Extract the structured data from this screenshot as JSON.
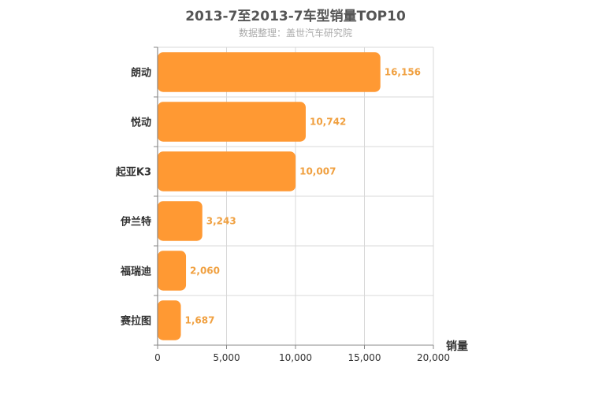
{
  "chart_data": {
    "type": "bar",
    "orientation": "horizontal",
    "title": "2013-7至2013-7车型销量TOP10",
    "subtitle": "数据整理：盖世汽车研究院",
    "categories": [
      "朗动",
      "悦动",
      "起亚K3",
      "伊兰特",
      "福瑞迪",
      "赛拉图"
    ],
    "values": [
      16156,
      10742,
      10007,
      3243,
      2060,
      1687
    ],
    "data_labels": [
      "16,156",
      "10,742",
      "10,007",
      "3,243",
      "2,060",
      "1,687"
    ],
    "xlabel": "销量",
    "xlim": [
      0,
      20000
    ],
    "ticks": [
      0,
      5000,
      10000,
      15000,
      20000
    ],
    "tick_labels": [
      "0",
      "5,000",
      "10,000",
      "15,000",
      "20,000"
    ],
    "grid": true,
    "bar_color": "#ff9933",
    "label_color": "#f0a040"
  }
}
